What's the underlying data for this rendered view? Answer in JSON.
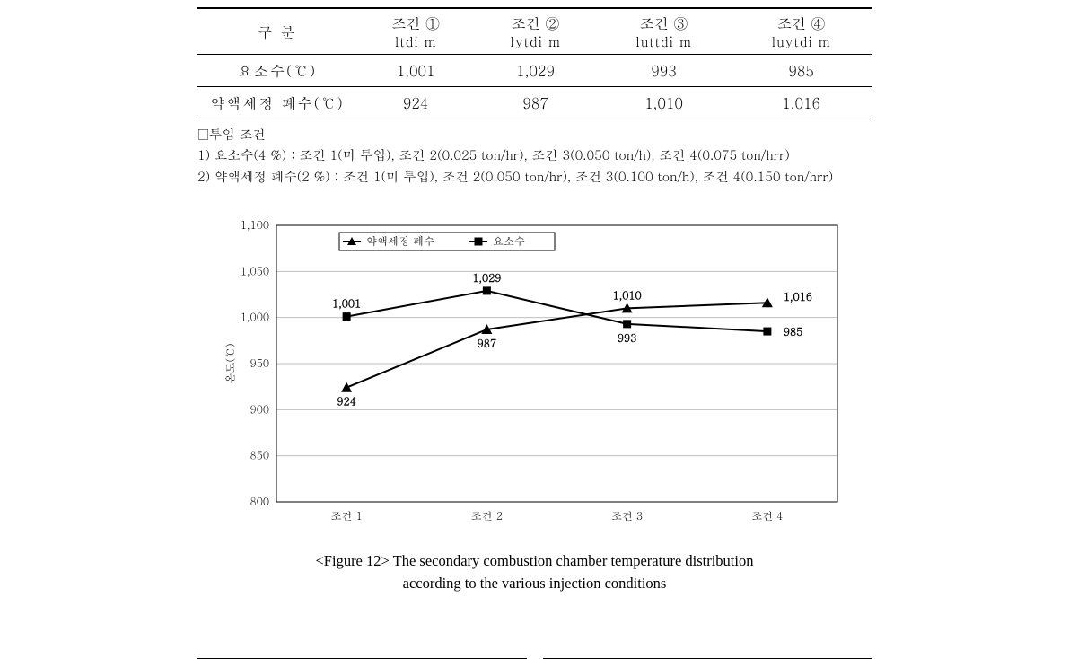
{
  "table": {
    "header_row_label": "구   분",
    "columns": [
      {
        "top": "조건 ①",
        "sub": "ltdi m"
      },
      {
        "top": "조건 ②",
        "sub": "lytdi m"
      },
      {
        "top": "조건 ③",
        "sub": "luttdi m"
      },
      {
        "top": "조건 ④",
        "sub": "luytdi m"
      }
    ],
    "rows": [
      {
        "label": "요소수(℃)",
        "cells": [
          "1,001",
          "1,029",
          "993",
          "985"
        ]
      },
      {
        "label": "약액세정 폐수(℃)",
        "cells": [
          "924",
          "987",
          "1,010",
          "1,016"
        ]
      }
    ]
  },
  "notes": {
    "title": "□투입 조건",
    "lines": [
      "1) 요소수(4 %) : 조건 1(미 투입), 조건 2(0.025 ton/hr), 조건 3(0.050 ton/h), 조건 4(0.075 ton/hrr)",
      "2) 약액세정 폐수(2 %) : 조건 1(미 투입), 조건 2(0.050 ton/hr), 조건 3(0.100 ton/h), 조건 4(0.150 ton/hrr)"
    ]
  },
  "chart": {
    "type": "line",
    "background_color": "#ffffff",
    "plot_border_color": "#000000",
    "grid_color": "#bfbfbf",
    "ylim": [
      800,
      1100
    ],
    "ytick_step": 50,
    "yticks": [
      800,
      850,
      900,
      950,
      1000,
      1050,
      1100
    ],
    "categories": [
      "조건 1",
      "조건 2",
      "조건 3",
      "조건 4"
    ],
    "tick_fontsize": 12,
    "label_fontsize": 12,
    "value_label_fontsize": 12,
    "legend": {
      "position": "top-inside-left",
      "fontsize": 12,
      "border_color": "#000000",
      "items": [
        "약액세정 폐수",
        "요소수"
      ]
    },
    "series": [
      {
        "name": "약액세정 폐수",
        "marker": "triangle",
        "marker_size": 10,
        "line_width": 2,
        "color": "#000000",
        "values": [
          924,
          987,
          1010,
          1016
        ],
        "value_labels": [
          "924",
          "987",
          "1,010",
          "1,016"
        ]
      },
      {
        "name": "요소수",
        "marker": "square",
        "marker_size": 9,
        "line_width": 2,
        "color": "#000000",
        "values": [
          1001,
          1029,
          993,
          985
        ],
        "value_labels": [
          "1,001",
          "1,029",
          "993",
          "985"
        ]
      }
    ],
    "y_axis_label": "온도(℃)"
  },
  "caption": {
    "line1": "<Figure 12> The secondary combustion chamber temperature distribution",
    "line2": "according to the various injection conditions"
  }
}
